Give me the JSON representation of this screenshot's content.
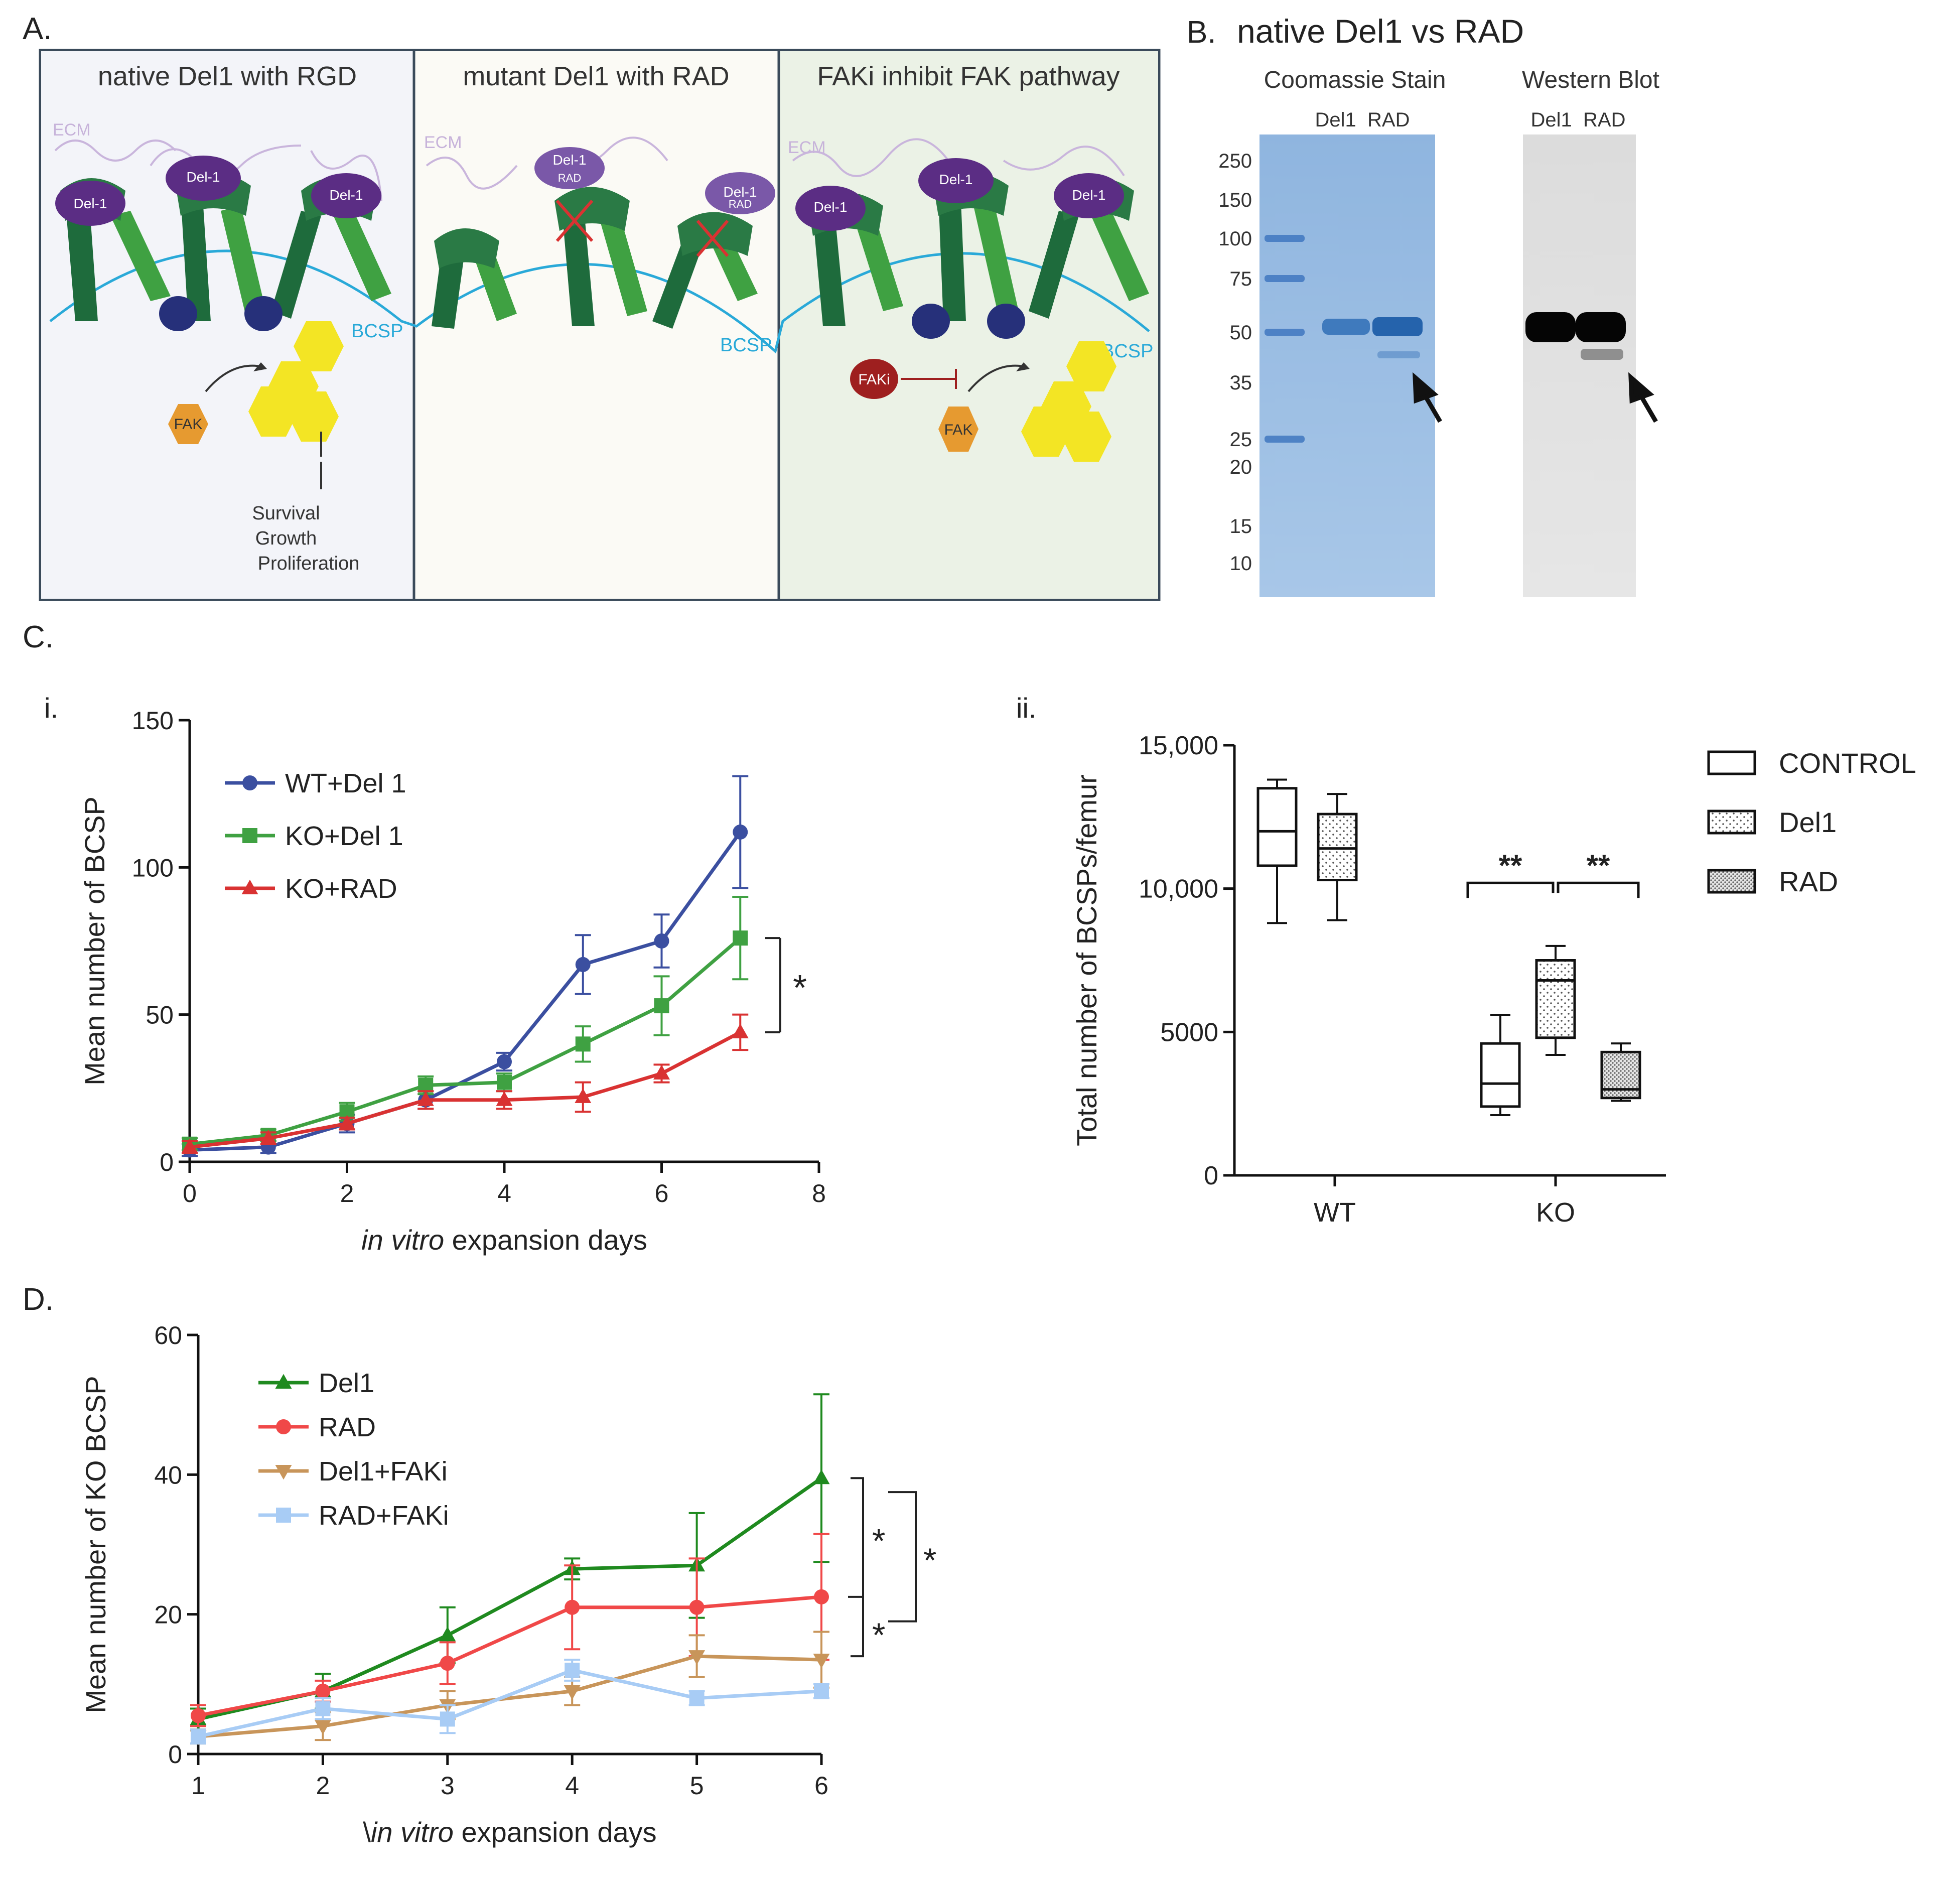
{
  "panel_labels": {
    "a": "A.",
    "b": "B.",
    "c": "C.",
    "d": "D.",
    "ci": "i.",
    "cii": "ii."
  },
  "colors": {
    "wt_del1": "#3b4fa0",
    "ko_del1": "#3fa142",
    "ko_rad": "#d93232",
    "d_del1": "#1f8a1f",
    "d_rad": "#f04848",
    "d_del1_faki": "#c8955a",
    "d_rad_faki": "#a8ccf5"
  },
  "panel_a": {
    "titles": [
      "native Del1 with RGD",
      "mutant Del1 with RAD",
      "FAKi inhibit FAK pathway"
    ],
    "ecm_label": "ECM",
    "del1_label": "Del-1",
    "rad_label": "RAD",
    "bcsp_label": "BCSP",
    "fak_label": "FAK",
    "faki_label": "FAKi",
    "outcomes": [
      "Survival",
      "Growth",
      "Proliferation"
    ]
  },
  "panel_b": {
    "title": "native Del1 vs RAD",
    "coomassie_title": "Coomassie Stain",
    "western_title": "Western Blot",
    "lane_labels": "Del1  RAD",
    "ladder": [
      "250",
      "150",
      "100",
      "75",
      "50",
      "35",
      "25",
      "20",
      "15",
      "10"
    ]
  },
  "chart_data": [
    {
      "id": "C-i",
      "type": "line",
      "xlabel_italic": "in vitro",
      "xlabel_rest": " expansion days",
      "ylabel": "Mean number of BCSP",
      "xlim": [
        0,
        8
      ],
      "ylim": [
        0,
        150
      ],
      "xticks": [
        0,
        2,
        4,
        6,
        8
      ],
      "yticks": [
        0,
        50,
        100,
        150
      ],
      "x": [
        0,
        1,
        2,
        3,
        4,
        5,
        6,
        7
      ],
      "series": [
        {
          "name": "WT+Del 1",
          "marker": "circle",
          "values": [
            4,
            5,
            13,
            21,
            34,
            67,
            75,
            112
          ],
          "errors": [
            2,
            2,
            3,
            3,
            3,
            10,
            9,
            19
          ]
        },
        {
          "name": "KO+Del 1",
          "marker": "square",
          "values": [
            6,
            9,
            17,
            26,
            27,
            40,
            53,
            76
          ],
          "errors": [
            2,
            2,
            3,
            3,
            3,
            6,
            10,
            14
          ]
        },
        {
          "name": "KO+RAD",
          "marker": "triangle",
          "values": [
            5,
            8,
            13,
            21,
            21,
            22,
            30,
            44
          ],
          "errors": [
            2,
            2,
            2,
            3,
            3,
            5,
            3,
            6
          ]
        }
      ],
      "significance": "*"
    },
    {
      "id": "C-ii",
      "type": "box",
      "ylabel": "Total number of BCSPs/femur",
      "yticks": [
        "0",
        "5000",
        "10,000",
        "15,000"
      ],
      "ylim": [
        0,
        15000
      ],
      "categories": [
        "WT",
        "KO"
      ],
      "legend": [
        "CONTROL",
        "Del1",
        "RAD"
      ],
      "boxes": [
        {
          "group": "WT",
          "series": "CONTROL",
          "min": 8800,
          "q1": 10800,
          "median": 12000,
          "q3": 13500,
          "max": 13800
        },
        {
          "group": "WT",
          "series": "Del1",
          "min": 8900,
          "q1": 10300,
          "median": 11400,
          "q3": 12600,
          "max": 13300
        },
        {
          "group": "KO",
          "series": "CONTROL",
          "min": 2100,
          "q1": 2400,
          "median": 3200,
          "q3": 4600,
          "max": 5600
        },
        {
          "group": "KO",
          "series": "Del1",
          "min": 4200,
          "q1": 4800,
          "median": 6800,
          "q3": 7500,
          "max": 8000
        },
        {
          "group": "KO",
          "series": "RAD",
          "min": 2600,
          "q1": 2700,
          "median": 3000,
          "q3": 4300,
          "max": 4600
        }
      ],
      "significance": [
        "**",
        "**"
      ]
    },
    {
      "id": "D",
      "type": "line",
      "xlabel_prefix": "\\",
      "xlabel_italic": "in vitro",
      "xlabel_rest": " expansion days",
      "ylabel": "Mean number of KO BCSP",
      "xlim": [
        1,
        6
      ],
      "ylim": [
        0,
        60
      ],
      "xticks": [
        1,
        2,
        3,
        4,
        5,
        6
      ],
      "yticks": [
        0,
        20,
        40,
        60
      ],
      "x": [
        1,
        2,
        3,
        4,
        5,
        6
      ],
      "series": [
        {
          "name": "Del1",
          "marker": "triangle",
          "values": [
            5,
            9,
            17,
            26.5,
            27,
            39.5
          ],
          "errors": [
            1.5,
            2.5,
            4,
            1.5,
            7.5,
            12
          ]
        },
        {
          "name": "RAD",
          "marker": "circle",
          "values": [
            5.5,
            9,
            13,
            21,
            21,
            22.5
          ],
          "errors": [
            1.5,
            1.5,
            3,
            6,
            7,
            9
          ]
        },
        {
          "name": "Del1+FAKi",
          "marker": "triangle-down",
          "values": [
            2.5,
            4,
            7,
            9,
            14,
            13.5
          ],
          "errors": [
            1,
            2,
            2,
            2,
            3,
            4
          ]
        },
        {
          "name": "RAD+FAKi",
          "marker": "square",
          "values": [
            2.5,
            6.5,
            5,
            12,
            8,
            9
          ],
          "errors": [
            1,
            1.5,
            2,
            1.5,
            1,
            1
          ]
        }
      ],
      "significance": [
        "*",
        "*",
        "*"
      ]
    }
  ]
}
